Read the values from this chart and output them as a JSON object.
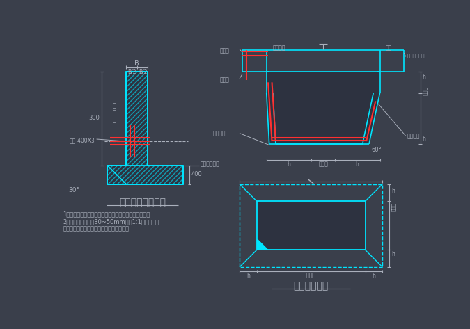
{
  "bg_color": "#3a3f4b",
  "cyan": "#00e5ff",
  "red": "#ff3030",
  "gray_text": "#aab0bc",
  "dark_fill": "#2d3240",
  "title1": "地下室外墙施工缝",
  "title2": "地下室集水坑",
  "note1": "1、施工缝在新筑混凝土前应将其表面浮浆和杂物清除。",
  "note2": "2、先铺净浆，再铺30~50mm厚的1:1水泥砂浆或",
  "note3": "涂刷混凝土界面处理剂，并及时浇灌混凝土.",
  "label_B": "B",
  "label_B2": "B/2  B/2",
  "label_300": "300",
  "label_30": "30°",
  "label_400": "400",
  "label_edge_water": "边\n水\n面",
  "label_steel": "钢板-400X3",
  "label_base_top": "底板板顶标高",
  "label_panel_top": "板面筋",
  "label_same_panel_top": "同板面筋",
  "label_base_plate": "底板",
  "label_base_face": "底板板面标高",
  "label_panel_bot": "板底筋",
  "label_same_panel_bot": "同板底筋",
  "label_waterproof": "外防水层",
  "label_per_unit": "按单体",
  "label_pile_unit": "桩单体",
  "label_h": "h",
  "label_60": "60°"
}
